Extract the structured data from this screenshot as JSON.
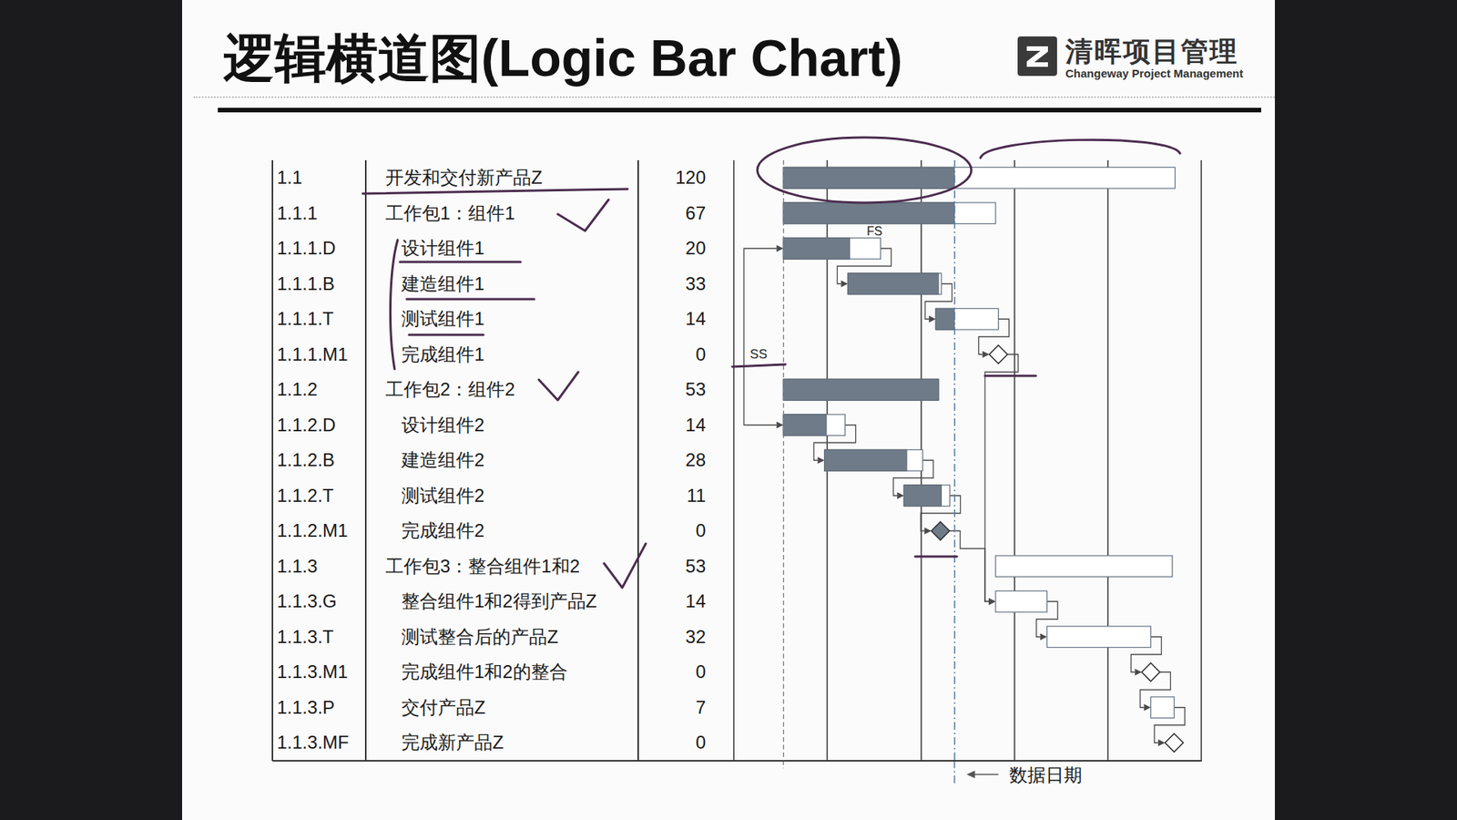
{
  "header": {
    "title": "逻辑横道图(Logic Bar Chart)",
    "logo": "清晖项目管理",
    "logo_subtitle": "Changeway Project Management"
  },
  "chart_data": {
    "type": "gantt",
    "xlim": [
      0,
      5
    ],
    "xticks": [
      0,
      1,
      2,
      3,
      4,
      5
    ],
    "tick_labels": false,
    "grid": true,
    "color": "#6f7b89",
    "start_line": 0.53,
    "data_date": {
      "value": 2.36,
      "label": "数据日期"
    },
    "rows": [
      {
        "id": "1.1",
        "name": "开发和交付新产品Z",
        "duration": 120,
        "start": 0.53,
        "end": 4.72,
        "progress": 2.36
      },
      {
        "id": "1.1.1",
        "name": "工作包1：组件1",
        "duration": 67,
        "start": 0.53,
        "end": 2.8,
        "progress": 2.36
      },
      {
        "id": "1.1.1.D",
        "name": "设计组件1",
        "duration": 20,
        "start": 0.53,
        "end": 1.57,
        "progress": 1.24
      },
      {
        "id": "1.1.1.B",
        "name": "建造组件1",
        "duration": 33,
        "start": 1.22,
        "end": 2.22,
        "progress": 2.19
      },
      {
        "id": "1.1.1.T",
        "name": "测试组件1",
        "duration": 14,
        "start": 2.16,
        "end": 2.83,
        "progress": 2.36
      },
      {
        "id": "1.1.1.M1",
        "name": "完成组件1",
        "duration": 0,
        "milestone": 2.83,
        "reached": false
      },
      {
        "id": "1.1.2",
        "name": "工作包2：组件2",
        "duration": 53,
        "start": 0.53,
        "end": 2.19,
        "progress": 2.19
      },
      {
        "id": "1.1.2.D",
        "name": "设计组件2",
        "duration": 14,
        "start": 0.53,
        "end": 1.19,
        "progress": 0.99
      },
      {
        "id": "1.1.2.B",
        "name": "建造组件2",
        "duration": 28,
        "start": 0.97,
        "end": 2.02,
        "progress": 1.85
      },
      {
        "id": "1.1.2.T",
        "name": "测试组件2",
        "duration": 11,
        "start": 1.82,
        "end": 2.31,
        "progress": 2.22
      },
      {
        "id": "1.1.2.M1",
        "name": "完成组件2",
        "duration": 0,
        "milestone": 2.21,
        "reached": true
      },
      {
        "id": "1.1.3",
        "name": "工作包3：整合组件1和2",
        "duration": 53,
        "start": 2.8,
        "end": 4.69
      },
      {
        "id": "1.1.3.G",
        "name": "整合组件1和2得到产品Z",
        "duration": 14,
        "start": 2.8,
        "end": 3.35
      },
      {
        "id": "1.1.3.T",
        "name": "测试整合后的产品Z",
        "duration": 32,
        "start": 3.35,
        "end": 4.46
      },
      {
        "id": "1.1.3.M1",
        "name": "完成组件1和2的整合",
        "duration": 0,
        "milestone": 4.46,
        "reached": false
      },
      {
        "id": "1.1.3.P",
        "name": "交付产品Z",
        "duration": 7,
        "start": 4.46,
        "end": 4.71
      },
      {
        "id": "1.1.3.MF",
        "name": "完成新产品Z",
        "duration": 0,
        "milestone": 4.71,
        "reached": false
      }
    ],
    "links": [
      {
        "from": "1.1.1.D",
        "to": "1.1.1.B",
        "type": "FS",
        "label": "FS"
      },
      {
        "from": "1.1.1.B",
        "to": "1.1.1.T",
        "type": "FS"
      },
      {
        "from": "1.1.1.T",
        "to": "1.1.1.M1",
        "type": "FS"
      },
      {
        "from": "1.1.1.D",
        "to": "1.1.2.D",
        "type": "SS",
        "label": "SS"
      },
      {
        "from": "1.1.2.D",
        "to": "1.1.2.B",
        "type": "FS"
      },
      {
        "from": "1.1.2.B",
        "to": "1.1.2.T",
        "type": "FS"
      },
      {
        "from": "1.1.2.T",
        "to": "1.1.2.M1",
        "type": "FS"
      },
      {
        "from": "1.1.1.M1",
        "to": "1.1.3.G",
        "type": "FS"
      },
      {
        "from": "1.1.2.M1",
        "to": "1.1.3.G",
        "type": "FS"
      },
      {
        "from": "1.1.3.G",
        "to": "1.1.3.T",
        "type": "FS"
      },
      {
        "from": "1.1.3.T",
        "to": "1.1.3.M1",
        "type": "FS"
      },
      {
        "from": "1.1.3.M1",
        "to": "1.1.3.P",
        "type": "FS"
      },
      {
        "from": "1.1.3.P",
        "to": "1.1.3.MF",
        "type": "FS"
      }
    ]
  }
}
